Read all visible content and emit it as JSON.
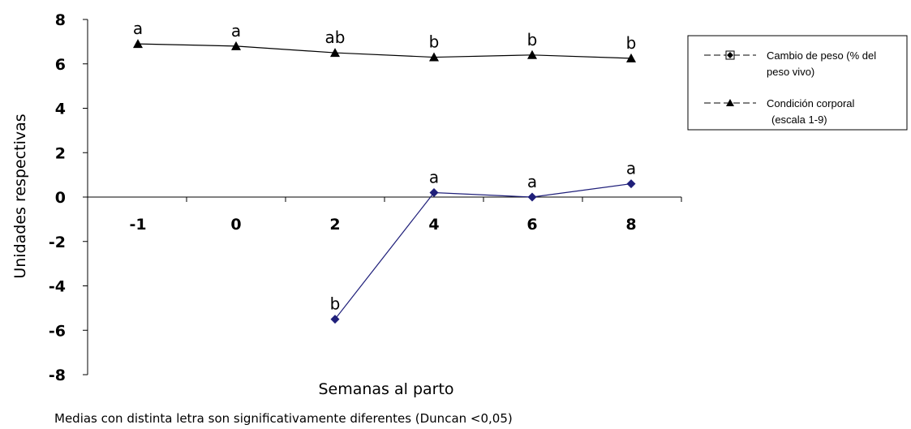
{
  "chart_data": {
    "type": "line",
    "xlabel": "Semanas al parto",
    "ylabel": "Unidades respectivas",
    "categories": [
      "-1",
      "0",
      "2",
      "4",
      "6",
      "8"
    ],
    "ylim": [
      -8,
      8
    ],
    "yticks": [
      "8",
      "6",
      "4",
      "2",
      "0",
      "-2",
      "-4",
      "-6",
      "-8"
    ],
    "grid": false,
    "legend_position": "right",
    "series": [
      {
        "name": "Cambio de peso (% del peso vivo)",
        "legend_lines": [
          "Cambio de peso (% del",
          "peso vivo)"
        ],
        "marker": "diamond",
        "color": "#1f1f7a",
        "values": [
          null,
          null,
          -5.5,
          0.2,
          0.0,
          0.6
        ],
        "labels": [
          null,
          null,
          "b",
          "a",
          "a",
          "a"
        ]
      },
      {
        "name": "Condición corporal (escala 1-9)",
        "legend_lines": [
          "Condición corporal",
          "(escala 1-9)"
        ],
        "marker": "triangle",
        "color": "#000000",
        "values": [
          6.9,
          6.8,
          6.5,
          6.3,
          6.4,
          6.25
        ],
        "labels": [
          "a",
          "a",
          "ab",
          "b",
          "b",
          "b"
        ]
      }
    ],
    "note": "Medias con distinta letra son significativamente diferentes (Duncan <0,05)"
  }
}
